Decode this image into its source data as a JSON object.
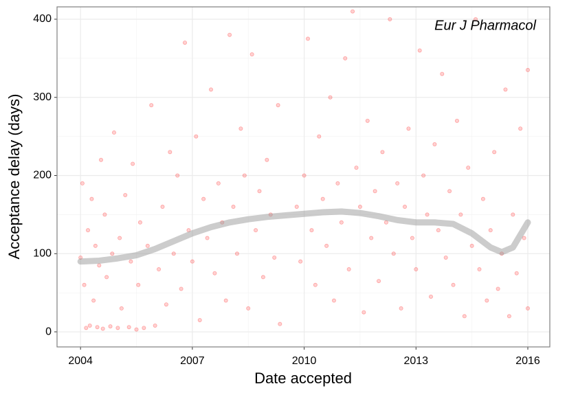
{
  "chart_data": {
    "type": "scatter",
    "annotation": "Eur J Pharmacol",
    "x_label": "Date accepted",
    "y_label": "Acceptance delay (days)",
    "xlim": [
      2003.37,
      2016.59
    ],
    "ylim": [
      -19.3,
      415.8
    ],
    "xticks": [
      2004,
      2007,
      2010,
      2013,
      2016
    ],
    "yticks": [
      0,
      100,
      200,
      300,
      400
    ],
    "grid": true,
    "series": [
      {
        "type": "scatter",
        "color": "#ff0000",
        "x": [
          2004.0,
          2004.05,
          2004.1,
          2004.15,
          2004.2,
          2004.25,
          2004.3,
          2004.35,
          2004.4,
          2004.45,
          2004.5,
          2004.55,
          2004.6,
          2004.65,
          2004.7,
          2004.8,
          2004.85,
          2004.9,
          2005.0,
          2005.05,
          2005.1,
          2005.2,
          2005.3,
          2005.35,
          2005.4,
          2005.5,
          2005.55,
          2005.6,
          2005.7,
          2005.8,
          2005.9,
          2006.0,
          2006.1,
          2006.2,
          2006.3,
          2006.4,
          2006.5,
          2006.6,
          2006.7,
          2006.8,
          2006.9,
          2007.0,
          2007.1,
          2007.2,
          2007.3,
          2007.4,
          2007.5,
          2007.6,
          2007.7,
          2007.8,
          2007.9,
          2008.0,
          2008.1,
          2008.2,
          2008.3,
          2008.4,
          2008.5,
          2008.6,
          2008.7,
          2008.8,
          2008.9,
          2009.0,
          2009.1,
          2009.2,
          2009.3,
          2009.35,
          2009.8,
          2009.9,
          2010.0,
          2010.1,
          2010.2,
          2010.3,
          2010.4,
          2010.5,
          2010.6,
          2010.7,
          2010.8,
          2010.9,
          2011.0,
          2011.1,
          2011.2,
          2011.3,
          2011.4,
          2011.5,
          2011.6,
          2011.7,
          2011.8,
          2011.9,
          2012.0,
          2012.1,
          2012.2,
          2012.3,
          2012.4,
          2012.5,
          2012.6,
          2012.7,
          2012.8,
          2012.9,
          2013.0,
          2013.1,
          2013.2,
          2013.3,
          2013.4,
          2013.5,
          2013.6,
          2013.7,
          2013.8,
          2013.9,
          2014.0,
          2014.1,
          2014.2,
          2014.3,
          2014.4,
          2014.5,
          2014.6,
          2014.7,
          2014.8,
          2014.9,
          2015.0,
          2015.1,
          2015.2,
          2015.3,
          2015.4,
          2015.5,
          2015.6,
          2015.7,
          2015.8,
          2015.9,
          2016.0,
          2016.0
        ],
        "values": [
          95,
          190,
          60,
          5,
          130,
          8,
          170,
          40,
          110,
          6,
          85,
          220,
          4,
          150,
          70,
          7,
          100,
          255,
          5,
          120,
          30,
          175,
          6,
          90,
          215,
          3,
          60,
          140,
          5,
          110,
          290,
          8,
          80,
          160,
          35,
          230,
          100,
          200,
          55,
          370,
          130,
          90,
          250,
          15,
          170,
          120,
          310,
          75,
          190,
          140,
          40,
          380,
          160,
          100,
          260,
          200,
          30,
          355,
          130,
          180,
          70,
          220,
          150,
          95,
          290,
          10,
          160,
          90,
          200,
          375,
          130,
          60,
          250,
          170,
          110,
          300,
          40,
          190,
          140,
          350,
          80,
          410,
          210,
          160,
          25,
          270,
          120,
          180,
          65,
          230,
          140,
          400,
          100,
          190,
          30,
          160,
          260,
          120,
          80,
          360,
          200,
          150,
          45,
          240,
          130,
          330,
          95,
          180,
          60,
          270,
          150,
          20,
          210,
          110,
          400,
          80,
          170,
          40,
          130,
          230,
          55,
          100,
          310,
          20,
          150,
          75,
          260,
          120,
          335,
          30
        ]
      },
      {
        "type": "line",
        "color": "#999999",
        "x": [
          2004,
          2004.5,
          2005,
          2005.5,
          2006,
          2006.5,
          2007,
          2007.5,
          2008,
          2008.5,
          2009,
          2009.5,
          2010,
          2010.5,
          2011,
          2011.5,
          2012,
          2012.5,
          2013,
          2013.5,
          2014,
          2014.5,
          2015,
          2015.3,
          2015.6,
          2016
        ],
        "values": [
          90,
          91,
          94,
          98,
          106,
          116,
          126,
          134,
          140,
          144,
          147,
          149,
          151,
          153,
          154,
          152,
          148,
          143,
          140,
          140,
          138,
          126,
          108,
          102,
          108,
          140
        ]
      }
    ]
  }
}
